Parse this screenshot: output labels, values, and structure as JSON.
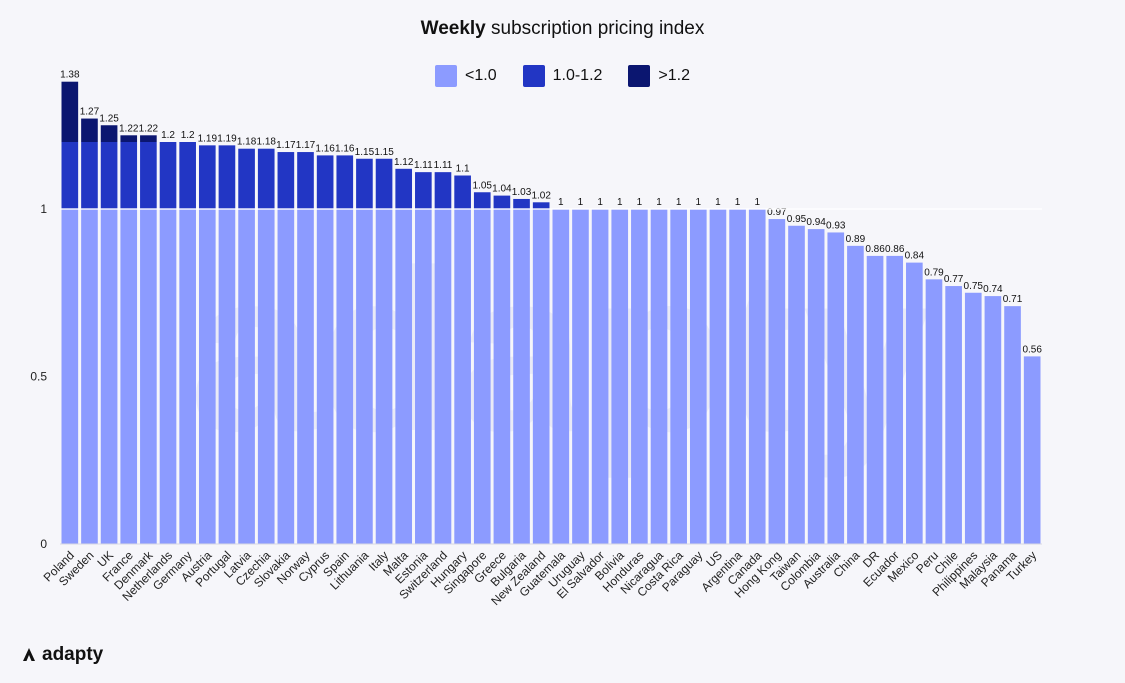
{
  "chart_data": {
    "type": "bar",
    "title_bold": "Weekly",
    "title_rest": "subscription pricing index",
    "legend": [
      {
        "label": "<1.0",
        "color": "#8c9bff"
      },
      {
        "label": "1.0-1.2",
        "color": "#2236c4"
      },
      {
        "label": ">1.2",
        "color": "#0b1670"
      }
    ],
    "categories": [
      "Poland",
      "Sweden",
      "UK",
      "France",
      "Denmark",
      "Netherlands",
      "Germany",
      "Austria",
      "Portugal",
      "Latvia",
      "Czechia",
      "Slovakia",
      "Norway",
      "Cyprus",
      "Spain",
      "Lithuania",
      "Italy",
      "Malta",
      "Estonia",
      "Switzerland",
      "Hungary",
      "Singapore",
      "Greece",
      "Bulgaria",
      "New Zealand",
      "Guatemala",
      "Uruguay",
      "El Salvador",
      "Bolivia",
      "Honduras",
      "Nicaragua",
      "Costa Rica",
      "Paraguay",
      "US",
      "Argentina",
      "Canada",
      "Hong Kong",
      "Taiwan",
      "Colombia",
      "Australia",
      "China",
      "DR",
      "Ecuador",
      "Mexico",
      "Peru",
      "Chile",
      "Philippines",
      "Malaysia",
      "Panama",
      "Turkey"
    ],
    "values": [
      1.38,
      1.27,
      1.25,
      1.22,
      1.22,
      1.2,
      1.2,
      1.19,
      1.19,
      1.18,
      1.18,
      1.17,
      1.17,
      1.16,
      1.16,
      1.15,
      1.15,
      1.12,
      1.11,
      1.11,
      1.1,
      1.05,
      1.04,
      1.03,
      1.02,
      1,
      1,
      1,
      1,
      1,
      1,
      1,
      1,
      1,
      1,
      1,
      0.97,
      0.95,
      0.94,
      0.93,
      0.89,
      0.86,
      0.86,
      0.84,
      0.79,
      0.77,
      0.75,
      0.74,
      0.71,
      0.56
    ],
    "ylim": [
      0,
      1.38
    ],
    "yticks": [
      {
        "value": 0,
        "label": "0"
      },
      {
        "value": 0.5,
        "label": "0.5"
      },
      {
        "value": 1,
        "label": "1"
      }
    ],
    "thresholds": [
      1.0,
      1.2
    ],
    "reference_line": 1
  },
  "brand": {
    "name": "adapty"
  }
}
